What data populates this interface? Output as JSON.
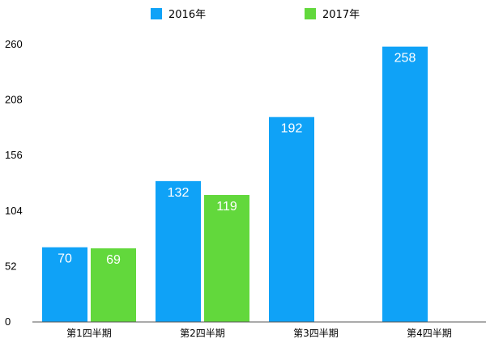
{
  "chart_data": {
    "type": "bar",
    "categories": [
      "第1四半期",
      "第2四半期",
      "第3四半期",
      "第4四半期"
    ],
    "series": [
      {
        "name": "2016年",
        "color": "#0fa2f7",
        "values": [
          70,
          132,
          192,
          258
        ]
      },
      {
        "name": "2017年",
        "color": "#62d83c",
        "values": [
          69,
          119,
          null,
          null
        ]
      }
    ],
    "y_ticks": [
      "0",
      "52",
      "104",
      "156",
      "208",
      "260"
    ],
    "ylim": [
      0,
      260
    ],
    "grid": false,
    "legend_position": "top-center",
    "data_labels": true
  }
}
